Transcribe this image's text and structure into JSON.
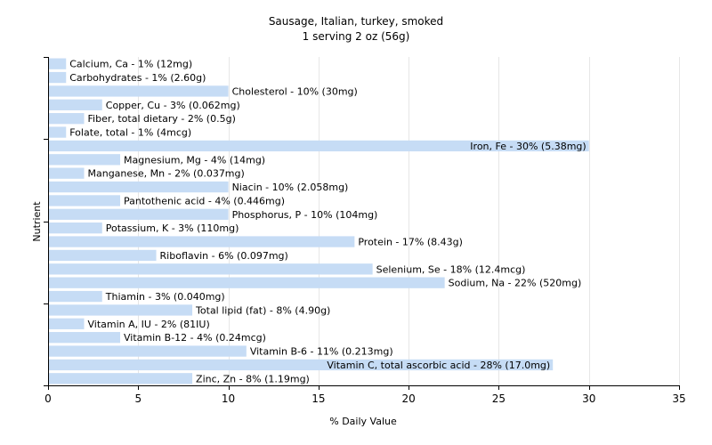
{
  "chart_data": {
    "type": "bar",
    "orientation": "horizontal",
    "title": "Sausage, Italian, turkey, smoked",
    "subtitle": "1 serving 2 oz (56g)",
    "xlabel": "% Daily Value",
    "ylabel": "Nutrient",
    "xlim": [
      0,
      35
    ],
    "xticks": [
      0,
      5,
      10,
      15,
      20,
      25,
      30,
      35
    ],
    "grid": "vertical",
    "bar_color": "#c6dcf5",
    "categories": [
      "Calcium, Ca",
      "Carbohydrates",
      "Cholesterol",
      "Copper, Cu",
      "Fiber, total dietary",
      "Folate, total",
      "Iron, Fe",
      "Magnesium, Mg",
      "Manganese, Mn",
      "Niacin",
      "Pantothenic acid",
      "Phosphorus, P",
      "Potassium, K",
      "Protein",
      "Riboflavin",
      "Selenium, Se",
      "Sodium, Na",
      "Thiamin",
      "Total lipid (fat)",
      "Vitamin A, IU",
      "Vitamin B-12",
      "Vitamin B-6",
      "Vitamin C, total ascorbic acid",
      "Zinc, Zn"
    ],
    "values": [
      1,
      1,
      10,
      3,
      2,
      1,
      30,
      4,
      2,
      10,
      4,
      10,
      3,
      17,
      6,
      18,
      22,
      3,
      8,
      2,
      4,
      11,
      28,
      8
    ],
    "labels": [
      "Calcium, Ca - 1% (12mg)",
      "Carbohydrates - 1% (2.60g)",
      "Cholesterol - 10% (30mg)",
      "Copper, Cu - 3% (0.062mg)",
      "Fiber, total dietary - 2% (0.5g)",
      "Folate, total - 1% (4mcg)",
      "Iron, Fe - 30% (5.38mg)",
      "Magnesium, Mg - 4% (14mg)",
      "Manganese, Mn - 2% (0.037mg)",
      "Niacin - 10% (2.058mg)",
      "Pantothenic acid - 4% (0.446mg)",
      "Phosphorus, P - 10% (104mg)",
      "Potassium, K - 3% (110mg)",
      "Protein - 17% (8.43g)",
      "Riboflavin - 6% (0.097mg)",
      "Selenium, Se - 18% (12.4mcg)",
      "Sodium, Na - 22% (520mg)",
      "Thiamin - 3% (0.040mg)",
      "Total lipid (fat) - 8% (4.90g)",
      "Vitamin A, IU - 2% (81IU)",
      "Vitamin B-12 - 4% (0.24mcg)",
      "Vitamin B-6 - 11% (0.213mg)",
      "Vitamin C, total ascorbic acid - 28% (17.0mg)",
      "Zinc, Zn - 8% (1.19mg)"
    ]
  }
}
